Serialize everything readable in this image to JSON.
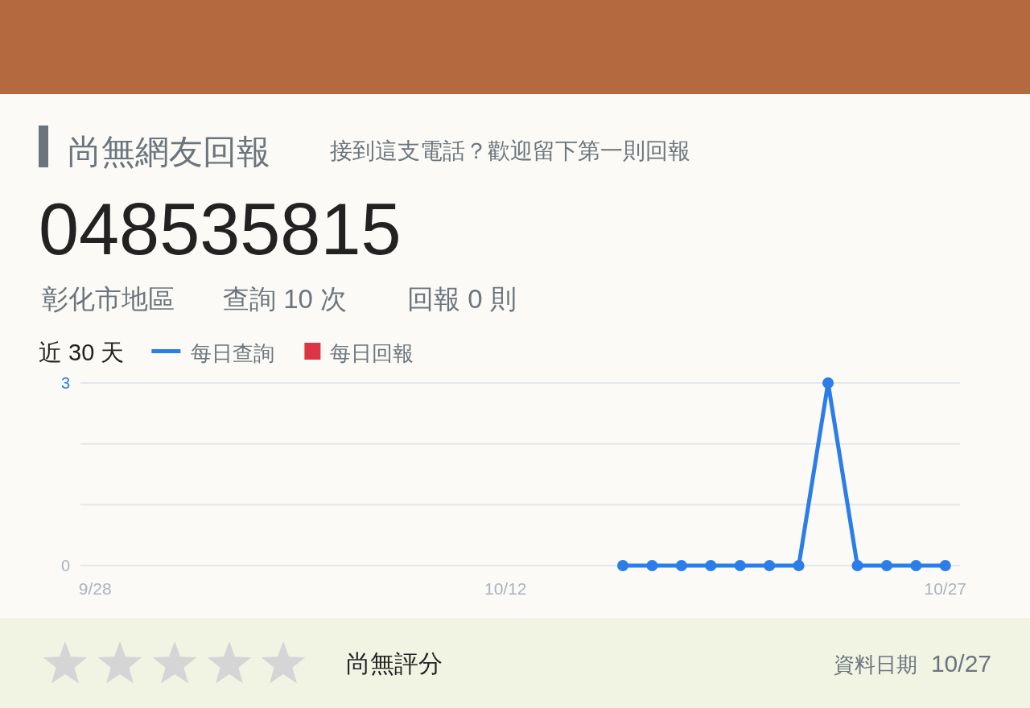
{
  "chart_data": {
    "type": "line",
    "title": "尚無網友回報",
    "subtitle": "接到這支電話？歡迎留下第一則回報",
    "legend_title": "近 30 天",
    "annotations": [
      "048535815",
      "彰化市地區",
      "查詢 10 次",
      "回報 0 則",
      "尚無評分",
      "資料日期",
      "10/27"
    ],
    "categories": [
      "9/28",
      null,
      null,
      null,
      null,
      null,
      null,
      null,
      null,
      null,
      null,
      null,
      null,
      null,
      "10/12",
      null,
      null,
      null,
      null,
      null,
      null,
      null,
      null,
      null,
      null,
      null,
      null,
      null,
      null,
      "10/27"
    ],
    "series": [
      {
        "name": "每日查詢",
        "color": "#2b7de9",
        "values": [
          null,
          null,
          null,
          null,
          null,
          null,
          null,
          null,
          null,
          null,
          null,
          null,
          null,
          null,
          null,
          null,
          null,
          null,
          0,
          0,
          0,
          0,
          0,
          0,
          0,
          3,
          0,
          0,
          0,
          0
        ]
      },
      {
        "name": "每日回報",
        "type": "bar",
        "color": "#dc3545",
        "values": [
          null,
          null,
          null,
          null,
          null,
          null,
          null,
          null,
          null,
          null,
          null,
          null,
          null,
          null,
          null,
          null,
          null,
          null,
          null,
          null,
          null,
          null,
          null,
          null,
          null,
          null,
          null,
          null,
          null,
          null
        ]
      }
    ],
    "ylim": [
      0,
      3
    ],
    "yticks": [
      0,
      {
        "value": 1,
        "label": null
      },
      {
        "value": 2,
        "label": null
      },
      3
    ],
    "grid": "y",
    "legend": "top left",
    "marker": "circle",
    "line_style": "solid"
  }
}
